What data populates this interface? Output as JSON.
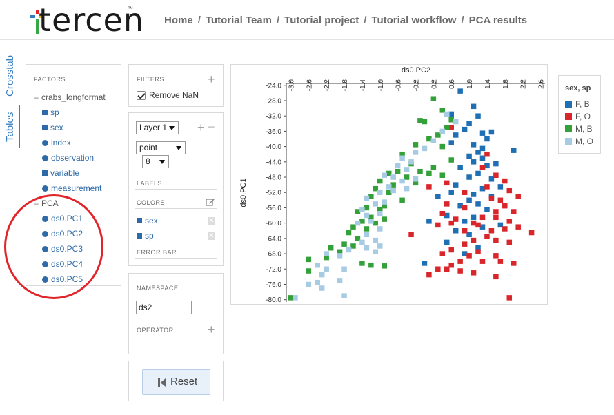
{
  "header": {
    "logo": "tercen",
    "logo_tm": "™",
    "breadcrumbs": [
      "Home",
      "Tutorial Team",
      "Tutorial project",
      "Tutorial workflow",
      "PCA results"
    ],
    "separator": "/"
  },
  "side_tabs": [
    "Crosstab",
    "Tables"
  ],
  "factors": {
    "title": "FACTORS",
    "groups": [
      {
        "label": "crabs_longformat",
        "items": [
          {
            "label": "sp",
            "type": "square"
          },
          {
            "label": "sex",
            "type": "square"
          },
          {
            "label": "index",
            "type": "circle"
          },
          {
            "label": "observation",
            "type": "circle"
          },
          {
            "label": "variable",
            "type": "square"
          },
          {
            "label": "measurement",
            "type": "circle"
          }
        ]
      },
      {
        "label": "PCA",
        "items": [
          {
            "label": "ds0.PC1",
            "type": "circle"
          },
          {
            "label": "ds0.PC2",
            "type": "circle"
          },
          {
            "label": "ds0.PC3",
            "type": "circle"
          },
          {
            "label": "ds0.PC4",
            "type": "circle"
          },
          {
            "label": "ds0.PC5",
            "type": "circle"
          }
        ]
      }
    ]
  },
  "filters": {
    "title": "FILTERS",
    "remove_nan_label": "Remove NaN",
    "remove_nan_checked": true
  },
  "layer": {
    "layer_select": "Layer 1",
    "type_select": "point",
    "size_select": "8",
    "labels_title": "LABELS",
    "colors_title": "COLORS",
    "colors": [
      "sex",
      "sp"
    ],
    "error_bar_title": "ERROR BAR"
  },
  "namespace": {
    "title": "NAMESPACE",
    "value": "ds2",
    "operator_title": "OPERATOR"
  },
  "reset": {
    "label": "Reset"
  },
  "legend": {
    "title": "sex, sp",
    "items": [
      {
        "label": "F, B",
        "color": "#1f6fb4"
      },
      {
        "label": "F, O",
        "color": "#d9262b"
      },
      {
        "label": "M, B",
        "color": "#34a03a"
      },
      {
        "label": "M, O",
        "color": "#a6cbe3"
      }
    ]
  },
  "chart_data": {
    "type": "scatter",
    "xlabel": "ds0.PC2",
    "ylabel": "ds0.PC1",
    "xlim": [
      -3.1,
      2.7
    ],
    "ylim": [
      -80.6,
      -23.5
    ],
    "xticks": [
      "-3.0",
      "-2.6",
      "-2.2",
      "-1.8",
      "-1.4",
      "-1.0",
      "-0.6",
      "-0.2",
      "0.2",
      "0.6",
      "1.0",
      "1.4",
      "1.8",
      "2.2",
      "2.6"
    ],
    "yticks": [
      "-24.0",
      "-28.0",
      "-32.0",
      "-36.0",
      "-40.0",
      "-44.0",
      "-48.0",
      "-52.0",
      "-56.0",
      "-60.0",
      "-64.0",
      "-68.0",
      "-72.0",
      "-76.0",
      "-80.0"
    ],
    "series": [
      {
        "name": "F, B",
        "color": "#1f6fb4",
        "points": [
          [
            0.8,
            -25.5
          ],
          [
            1.1,
            -29.5
          ],
          [
            0.6,
            -31.5
          ],
          [
            1.2,
            -32.0
          ],
          [
            1.0,
            -34.0
          ],
          [
            0.9,
            -35.5
          ],
          [
            1.3,
            -36.5
          ],
          [
            1.5,
            -36.2
          ],
          [
            0.7,
            -37.0
          ],
          [
            1.4,
            -38.0
          ],
          [
            0.6,
            -39.0
          ],
          [
            1.1,
            -39.5
          ],
          [
            1.3,
            -40.5
          ],
          [
            1.2,
            -41.5
          ],
          [
            2.0,
            -41.0
          ],
          [
            1.0,
            -42.5
          ],
          [
            1.3,
            -43.0
          ],
          [
            1.1,
            -44.0
          ],
          [
            1.6,
            -44.5
          ],
          [
            1.4,
            -45.0
          ],
          [
            0.8,
            -45.5
          ],
          [
            1.2,
            -47.0
          ],
          [
            1.0,
            -48.0
          ],
          [
            1.5,
            -48.5
          ],
          [
            1.7,
            -50.5
          ],
          [
            0.7,
            -50.0
          ],
          [
            1.3,
            -51.0
          ],
          [
            0.6,
            -52.0
          ],
          [
            1.1,
            -52.5
          ],
          [
            1.5,
            -53.0
          ],
          [
            0.3,
            -53.0
          ],
          [
            1.0,
            -54.0
          ],
          [
            1.2,
            -55.0
          ],
          [
            0.8,
            -55.5
          ],
          [
            1.4,
            -56.5
          ],
          [
            0.5,
            -58.0
          ],
          [
            1.1,
            -58.5
          ],
          [
            0.9,
            -59.5
          ],
          [
            0.1,
            -59.5
          ],
          [
            1.3,
            -61.0
          ],
          [
            1.7,
            -60.5
          ],
          [
            0.7,
            -62.0
          ],
          [
            1.0,
            -63.0
          ],
          [
            0.5,
            -65.0
          ],
          [
            1.2,
            -66.5
          ],
          [
            0.9,
            -68.0
          ],
          [
            0.0,
            -70.5
          ]
        ]
      },
      {
        "name": "F, O",
        "color": "#d9262b",
        "points": [
          [
            0.6,
            -35.0
          ],
          [
            1.4,
            -42.0
          ],
          [
            1.3,
            -45.5
          ],
          [
            1.6,
            -47.5
          ],
          [
            0.5,
            -49.5
          ],
          [
            0.1,
            -50.5
          ],
          [
            1.4,
            -50.5
          ],
          [
            1.8,
            -49.0
          ],
          [
            1.9,
            -51.5
          ],
          [
            0.9,
            -52.0
          ],
          [
            1.5,
            -53.5
          ],
          [
            2.1,
            -53.0
          ],
          [
            1.7,
            -54.0
          ],
          [
            0.5,
            -55.0
          ],
          [
            1.8,
            -55.5
          ],
          [
            0.9,
            -56.0
          ],
          [
            1.6,
            -57.0
          ],
          [
            2.0,
            -57.0
          ],
          [
            0.4,
            -57.5
          ],
          [
            1.3,
            -58.5
          ],
          [
            0.7,
            -59.0
          ],
          [
            1.6,
            -58.5
          ],
          [
            1.9,
            -59.5
          ],
          [
            1.1,
            -60.0
          ],
          [
            0.3,
            -60.5
          ],
          [
            0.6,
            -60.0
          ],
          [
            1.2,
            -60.5
          ],
          [
            1.5,
            -62.0
          ],
          [
            2.1,
            -61.0
          ],
          [
            1.8,
            -61.5
          ],
          [
            0.9,
            -62.0
          ],
          [
            1.4,
            -63.5
          ],
          [
            2.4,
            -62.5
          ],
          [
            -0.3,
            -63.0
          ],
          [
            1.1,
            -64.5
          ],
          [
            1.6,
            -64.5
          ],
          [
            1.9,
            -65.0
          ],
          [
            0.9,
            -65.5
          ],
          [
            0.6,
            -67.0
          ],
          [
            1.2,
            -67.5
          ],
          [
            0.4,
            -68.0
          ],
          [
            1.0,
            -68.5
          ],
          [
            1.6,
            -68.5
          ],
          [
            0.8,
            -70.0
          ],
          [
            1.7,
            -70.0
          ],
          [
            2.0,
            -70.5
          ],
          [
            0.6,
            -71.0
          ],
          [
            0.3,
            -72.0
          ],
          [
            0.8,
            -72.5
          ],
          [
            1.1,
            -73.0
          ],
          [
            0.1,
            -73.5
          ],
          [
            1.6,
            -74.0
          ],
          [
            1.9,
            -79.5
          ],
          [
            0.5,
            -72.0
          ],
          [
            1.3,
            -70.0
          ]
        ]
      },
      {
        "name": "M, B",
        "color": "#34a03a",
        "points": [
          [
            0.2,
            -27.5
          ],
          [
            0.4,
            -30.5
          ],
          [
            0.6,
            -33.0
          ],
          [
            0.0,
            -33.5
          ],
          [
            -0.1,
            -33.2
          ],
          [
            0.5,
            -35.0
          ],
          [
            0.3,
            -37.0
          ],
          [
            0.1,
            -38.0
          ],
          [
            -0.2,
            -39.5
          ],
          [
            0.4,
            -40.0
          ],
          [
            -0.5,
            -42.0
          ],
          [
            0.6,
            -43.5
          ],
          [
            -0.3,
            -44.5
          ],
          [
            0.2,
            -45.5
          ],
          [
            -0.6,
            -46.5
          ],
          [
            -0.1,
            -46.5
          ],
          [
            0.1,
            -47.0
          ],
          [
            -0.8,
            -47.0
          ],
          [
            0.4,
            -47.5
          ],
          [
            -0.4,
            -48.0
          ],
          [
            -1.0,
            -49.0
          ],
          [
            -0.2,
            -49.5
          ],
          [
            -0.7,
            -50.0
          ],
          [
            -1.1,
            -51.0
          ],
          [
            -0.8,
            -52.0
          ],
          [
            -1.2,
            -53.0
          ],
          [
            -0.5,
            -54.0
          ],
          [
            -0.9,
            -55.5
          ],
          [
            -1.3,
            -56.0
          ],
          [
            -1.0,
            -56.5
          ],
          [
            -1.5,
            -57.0
          ],
          [
            -1.2,
            -58.5
          ],
          [
            -0.9,
            -59.0
          ],
          [
            -1.4,
            -59.5
          ],
          [
            -1.1,
            -60.0
          ],
          [
            -1.6,
            -61.0
          ],
          [
            -1.3,
            -61.5
          ],
          [
            -1.7,
            -62.5
          ],
          [
            -1.5,
            -64.0
          ],
          [
            -1.8,
            -65.5
          ],
          [
            -1.6,
            -66.0
          ],
          [
            -2.1,
            -66.5
          ],
          [
            -1.9,
            -67.5
          ],
          [
            -2.2,
            -69.0
          ],
          [
            -2.6,
            -69.5
          ],
          [
            -1.2,
            -71.0
          ],
          [
            -0.9,
            -71.2
          ],
          [
            -1.4,
            -70.5
          ],
          [
            -2.6,
            -72.5
          ],
          [
            -3.0,
            -79.5
          ]
        ]
      },
      {
        "name": "M, O",
        "color": "#a6cbe3",
        "points": [
          [
            0.5,
            -31.5
          ],
          [
            0.7,
            -33.5
          ],
          [
            0.4,
            -36.0
          ],
          [
            0.2,
            -38.5
          ],
          [
            0.0,
            -40.5
          ],
          [
            -0.2,
            -41.5
          ],
          [
            -0.5,
            -43.0
          ],
          [
            -0.3,
            -44.0
          ],
          [
            -0.6,
            -45.0
          ],
          [
            -0.4,
            -46.0
          ],
          [
            -0.9,
            -47.5
          ],
          [
            -0.7,
            -48.0
          ],
          [
            -0.2,
            -48.5
          ],
          [
            -0.5,
            -49.0
          ],
          [
            -0.8,
            -50.5
          ],
          [
            -0.4,
            -51.0
          ],
          [
            -0.7,
            -51.5
          ],
          [
            -1.0,
            -52.0
          ],
          [
            -1.3,
            -53.5
          ],
          [
            -0.9,
            -54.5
          ],
          [
            -1.1,
            -55.0
          ],
          [
            -1.4,
            -56.5
          ],
          [
            -1.0,
            -57.5
          ],
          [
            -1.3,
            -58.0
          ],
          [
            -1.2,
            -59.5
          ],
          [
            -1.5,
            -60.0
          ],
          [
            -1.0,
            -61.5
          ],
          [
            -1.3,
            -63.0
          ],
          [
            -1.1,
            -64.5
          ],
          [
            -1.4,
            -65.0
          ],
          [
            -1.0,
            -66.0
          ],
          [
            -1.3,
            -66.5
          ],
          [
            -1.1,
            -67.5
          ],
          [
            -1.7,
            -67.0
          ],
          [
            -1.9,
            -68.5
          ],
          [
            -2.2,
            -68.0
          ],
          [
            -2.4,
            -71.0
          ],
          [
            -2.2,
            -72.0
          ],
          [
            -1.8,
            -72.0
          ],
          [
            -2.3,
            -73.5
          ],
          [
            -1.9,
            -75.0
          ],
          [
            -2.4,
            -75.5
          ],
          [
            -2.6,
            -76.0
          ],
          [
            -2.3,
            -77.0
          ],
          [
            -1.8,
            -79.0
          ],
          [
            -2.9,
            -79.5
          ]
        ]
      }
    ]
  }
}
